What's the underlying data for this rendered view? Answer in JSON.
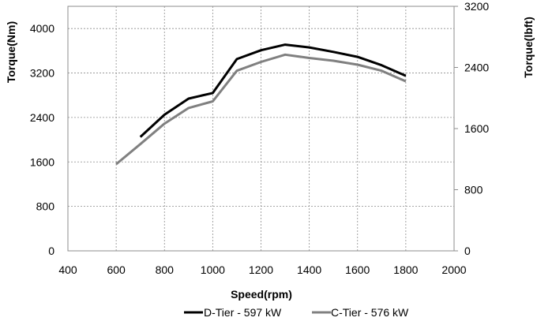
{
  "chart_data": {
    "type": "line",
    "xlabel": "Speed(rpm)",
    "ylabel_left": "Torque(Nm)",
    "ylabel_right": "Torque(lbft)",
    "xlim": [
      400,
      2000
    ],
    "ylim_left": [
      0,
      4400
    ],
    "ylim_right": [
      0,
      3200
    ],
    "x_ticks": [
      400,
      600,
      800,
      1000,
      1200,
      1400,
      1600,
      1800,
      2000
    ],
    "y_ticks_left": [
      0,
      800,
      1600,
      2400,
      3200,
      4000
    ],
    "y_ticks_right": [
      0,
      800,
      1600,
      2400,
      3200
    ],
    "grid": true,
    "legend_position": "bottom",
    "series": [
      {
        "name": "D-Tier - 597 kW",
        "color": "#000000",
        "x": [
          700,
          800,
          900,
          1000,
          1100,
          1200,
          1300,
          1400,
          1500,
          1600,
          1700,
          1800
        ],
        "y": [
          2050,
          2450,
          2740,
          2840,
          3450,
          3610,
          3710,
          3660,
          3580,
          3490,
          3340,
          3150
        ]
      },
      {
        "name": "C-Tier - 576 kW",
        "color": "#808080",
        "x": [
          600,
          700,
          800,
          900,
          1000,
          1100,
          1200,
          1300,
          1400,
          1500,
          1600,
          1700,
          1800
        ],
        "y": [
          1560,
          1920,
          2290,
          2570,
          2690,
          3240,
          3400,
          3530,
          3470,
          3420,
          3350,
          3240,
          3050
        ]
      }
    ]
  }
}
